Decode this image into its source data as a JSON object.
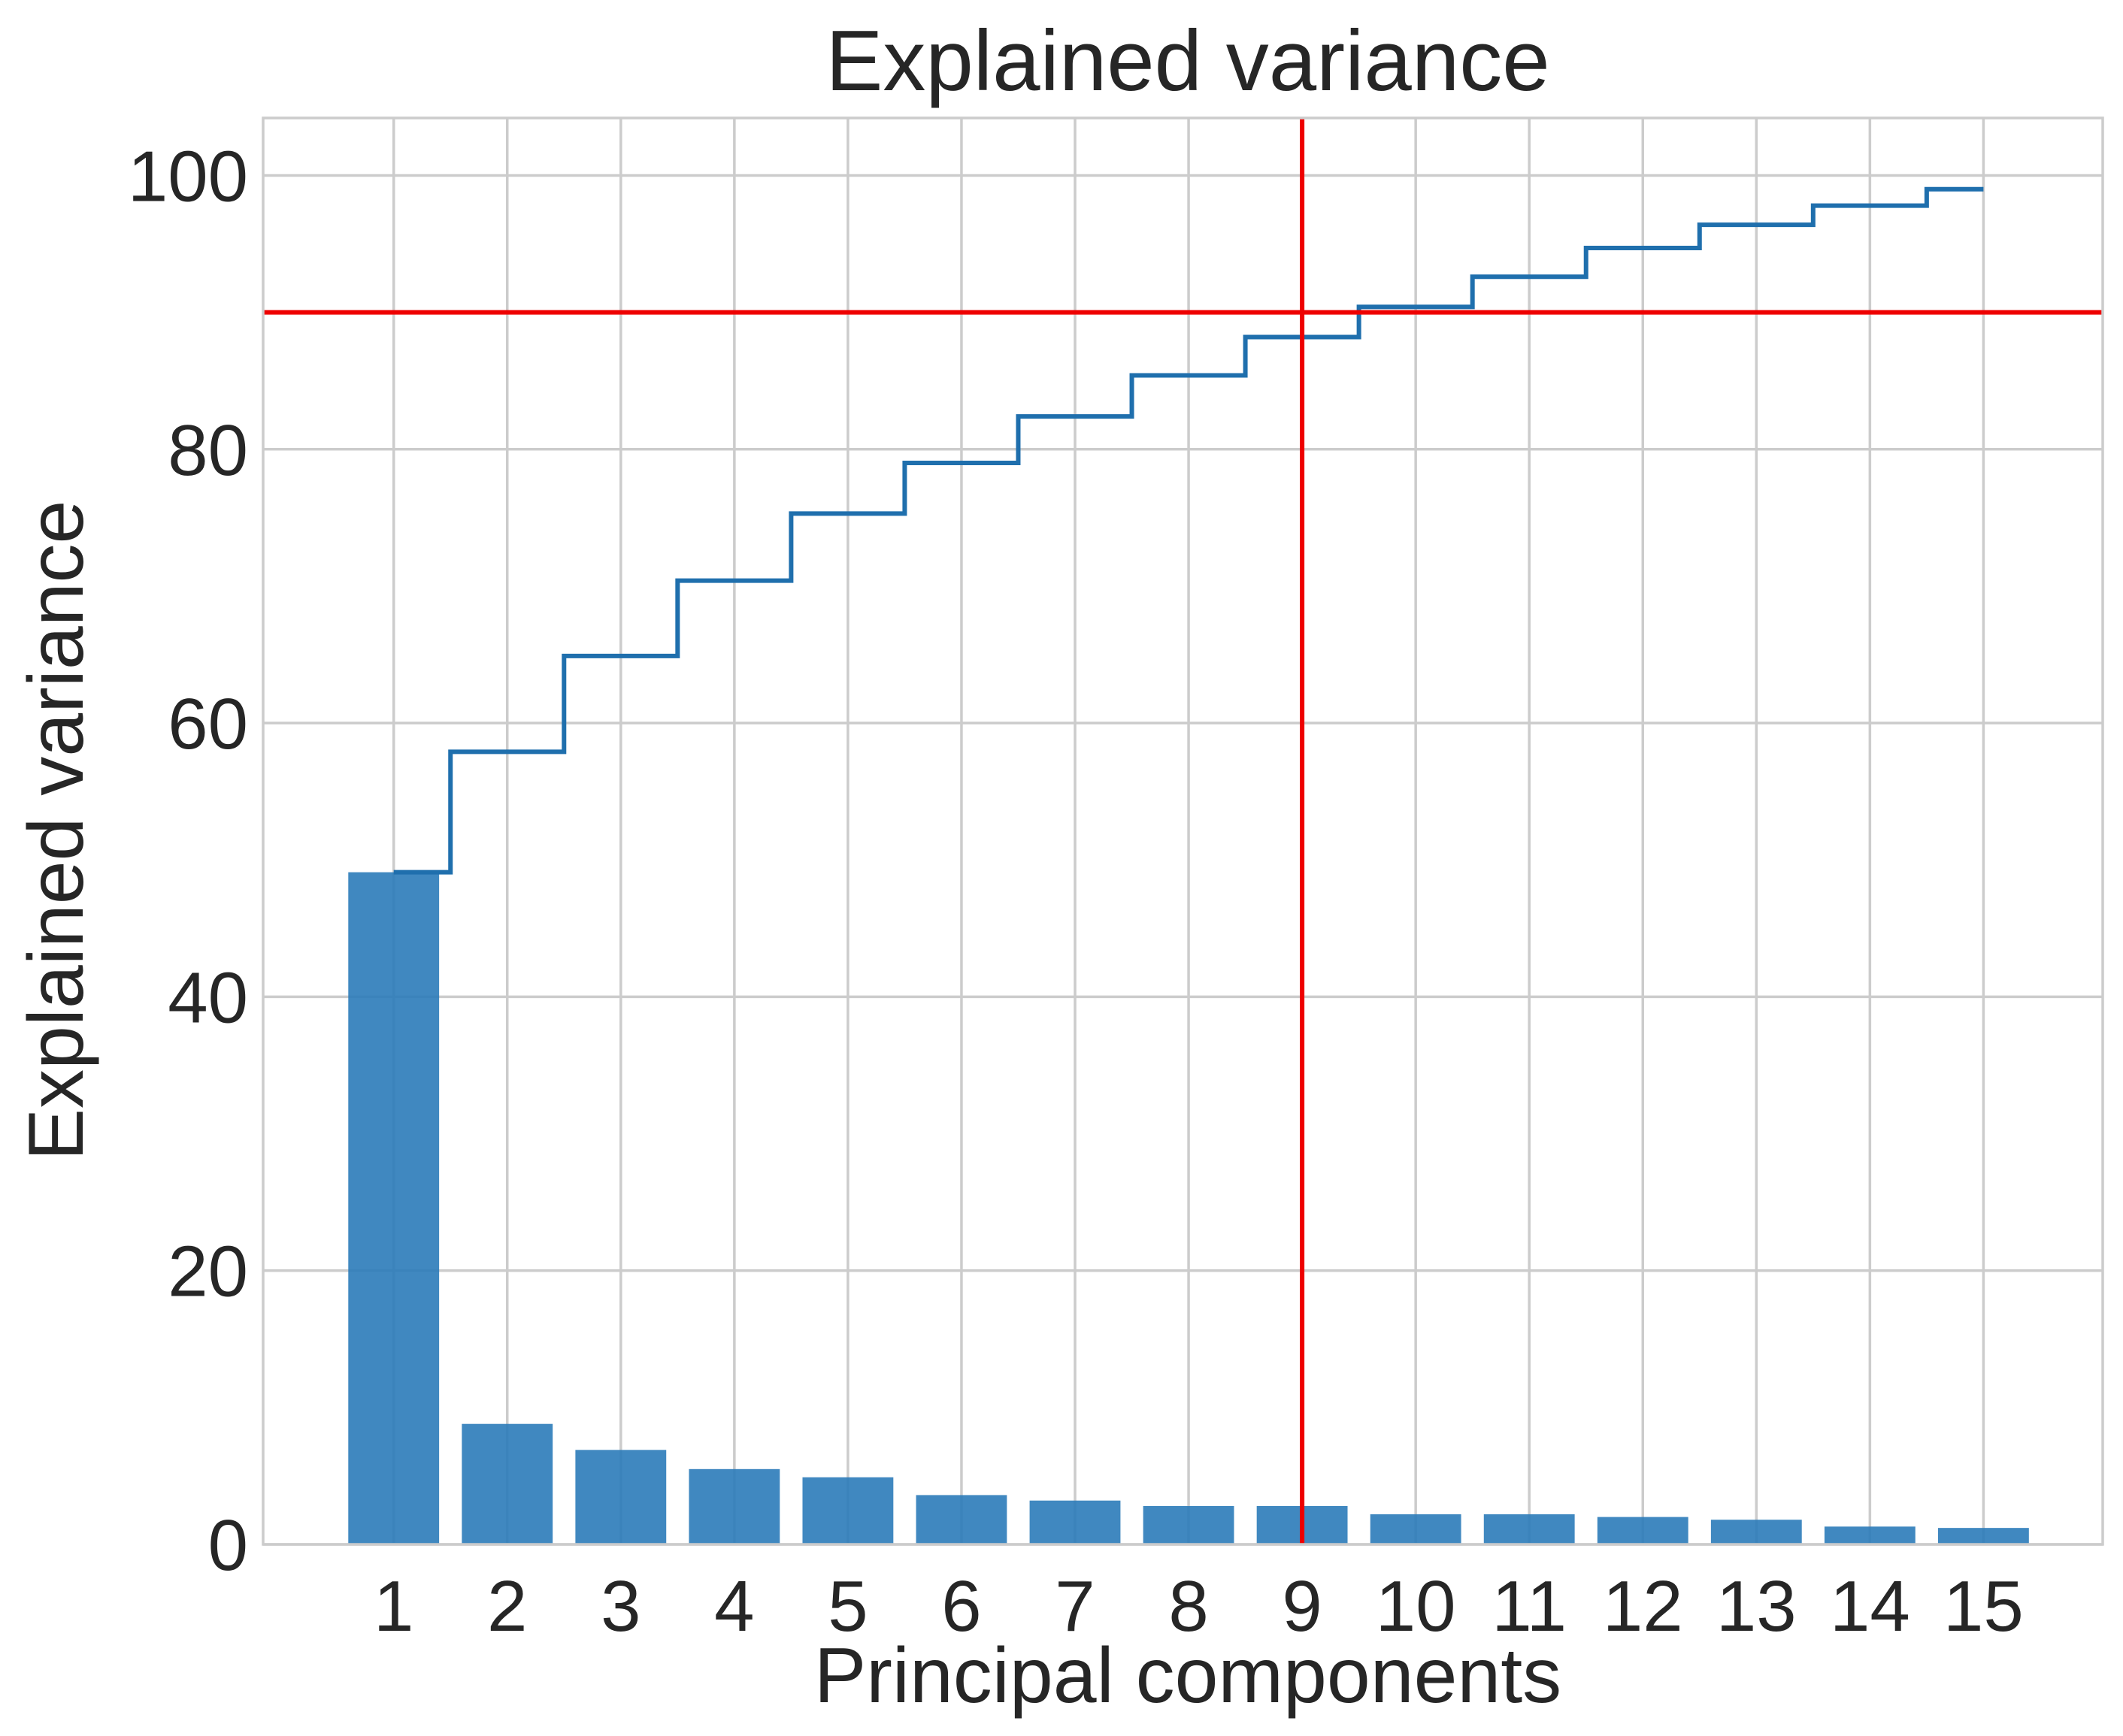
{
  "chart_data": {
    "type": "bar",
    "title": "Explained variance",
    "xlabel": "Principal components",
    "ylabel": "Explained variance",
    "categories": [
      "1",
      "2",
      "3",
      "4",
      "5",
      "6",
      "7",
      "8",
      "9",
      "10",
      "11",
      "12",
      "13",
      "14",
      "15"
    ],
    "xlim": [
      -0.15,
      16.05
    ],
    "ylim": [
      0,
      104.2
    ],
    "yticks": [
      0,
      20,
      40,
      60,
      80,
      100
    ],
    "grid": true,
    "series": [
      {
        "type": "bar",
        "values": [
          49.1,
          8.8,
          6.9,
          5.5,
          4.9,
          3.6,
          3.2,
          2.8,
          2.8,
          2.2,
          2.2,
          2.0,
          1.8,
          1.3,
          1.2
        ]
      },
      {
        "type": "step",
        "values": [
          49.1,
          57.9,
          64.9,
          70.4,
          75.3,
          79.0,
          82.4,
          85.4,
          88.2,
          90.4,
          92.6,
          94.7,
          96.4,
          97.8,
          99.0
        ]
      }
    ],
    "reference_lines": [
      {
        "orientation": "horizontal",
        "value": 90
      },
      {
        "orientation": "vertical",
        "value": 9
      }
    ],
    "colors": {
      "bar": "#2b7bb9",
      "step_line": "#1f6fad",
      "reference": "#ee0000"
    }
  }
}
